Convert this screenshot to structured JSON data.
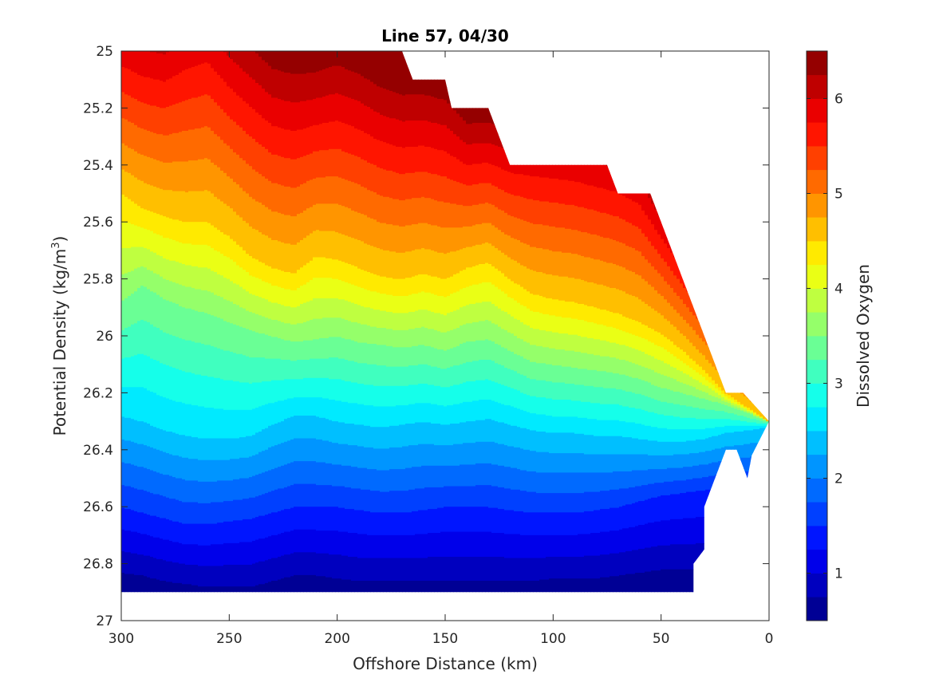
{
  "chart_data": {
    "type": "filled-contour",
    "title": "Line 57, 04/30",
    "xlabel": "Offshore Distance (km)",
    "ylabel_main": "Potential Density (kg/m",
    "ylabel_sup": "3",
    "ylabel_tail": ")",
    "colorbar_label": "Dissolved Oxygen",
    "xlim": [
      300,
      0
    ],
    "ylim": [
      25,
      27
    ],
    "x_reversed": true,
    "y_reversed": true,
    "xticks": [
      300,
      250,
      200,
      150,
      100,
      50,
      0
    ],
    "xtick_labels": [
      "300",
      "250",
      "200",
      "150",
      "100",
      "50",
      "0"
    ],
    "yticks": [
      25,
      25.2,
      25.4,
      25.6,
      25.8,
      26,
      26.2,
      26.4,
      26.6,
      26.8,
      27
    ],
    "ytick_labels": [
      "25",
      "25.2",
      "25.4",
      "25.6",
      "25.8",
      "26",
      "26.2",
      "26.4",
      "26.6",
      "26.8",
      "27"
    ],
    "colorbar_range": [
      0.5,
      6.5
    ],
    "colorbar_ticks": [
      1,
      2,
      3,
      4,
      5,
      6
    ],
    "colorbar_tick_labels": [
      "1",
      "2",
      "3",
      "4",
      "5",
      "6"
    ],
    "contour_levels": [
      0.5,
      0.75,
      1.0,
      1.25,
      1.5,
      1.75,
      2.0,
      2.25,
      2.5,
      2.75,
      3.0,
      3.25,
      3.5,
      3.75,
      4.0,
      4.25,
      4.5,
      4.75,
      5.0,
      5.25,
      5.5,
      5.75,
      6.0,
      6.25,
      6.5
    ],
    "colormap": "jet",
    "grid": false,
    "data_top_boundary": [
      [
        300,
        25.0
      ],
      [
        170,
        25.0
      ],
      [
        165,
        25.1
      ],
      [
        150,
        25.1
      ],
      [
        147,
        25.2
      ],
      [
        130,
        25.2
      ],
      [
        120,
        25.4
      ],
      [
        75,
        25.4
      ],
      [
        70,
        25.5
      ],
      [
        55,
        25.5
      ],
      [
        20,
        26.2
      ],
      [
        12,
        26.2
      ],
      [
        0,
        26.3
      ]
    ],
    "data_bottom_boundary": [
      [
        300,
        26.9
      ],
      [
        35,
        26.9
      ],
      [
        35,
        26.8
      ],
      [
        30,
        26.75
      ],
      [
        30,
        26.6
      ],
      [
        25,
        26.5
      ],
      [
        20,
        26.4
      ],
      [
        15,
        26.4
      ],
      [
        10,
        26.5
      ],
      [
        8,
        26.42
      ],
      [
        0,
        26.3
      ]
    ],
    "oxygen_at_density_300km": [
      [
        25.0,
        6.1
      ],
      [
        25.2,
        5.9
      ],
      [
        25.4,
        5.2
      ],
      [
        25.6,
        4.5
      ],
      [
        25.8,
        3.9
      ],
      [
        26.0,
        3.5
      ],
      [
        26.2,
        2.9
      ],
      [
        26.4,
        2.3
      ],
      [
        26.6,
        1.7
      ],
      [
        26.8,
        1.0
      ],
      [
        26.9,
        0.7
      ]
    ],
    "oxygen_contour_density_samples": {
      "x": [
        300,
        290,
        280,
        270,
        260,
        250,
        240,
        230,
        220,
        210,
        200,
        190,
        180,
        170,
        160,
        150,
        140,
        130,
        120,
        110,
        100,
        90,
        80,
        70,
        60,
        50,
        40,
        30,
        20,
        10,
        0
      ],
      "o2_5_5": [
        25.14,
        25.18,
        25.2,
        25.17,
        25.15,
        25.23,
        25.3,
        25.36,
        25.38,
        25.35,
        25.34,
        25.37,
        25.41,
        25.43,
        25.42,
        25.44,
        25.47,
        25.46,
        25.5,
        25.52,
        25.53,
        25.54,
        25.56,
        25.58,
        25.62,
        25.72,
        null,
        null,
        null,
        null,
        null
      ],
      "o2_4_5": [
        25.5,
        25.55,
        25.58,
        25.6,
        25.6,
        25.65,
        25.72,
        25.76,
        25.78,
        25.72,
        25.73,
        25.76,
        25.79,
        25.8,
        25.78,
        25.8,
        25.76,
        25.74,
        25.8,
        25.85,
        25.87,
        25.88,
        25.9,
        25.92,
        25.95,
        25.99,
        26.05,
        26.12,
        26.2,
        26.25,
        null
      ],
      "o2_3_5": [
        25.88,
        25.82,
        25.87,
        25.9,
        25.92,
        25.95,
        25.98,
        26.0,
        26.02,
        26.01,
        26.0,
        26.02,
        26.03,
        26.04,
        26.03,
        26.05,
        26.02,
        26.01,
        26.05,
        26.09,
        26.1,
        26.11,
        26.12,
        26.13,
        26.15,
        26.18,
        26.2,
        26.22,
        26.24,
        26.27,
        null
      ],
      "o2_2_5": [
        26.28,
        26.3,
        26.33,
        26.35,
        26.36,
        26.36,
        26.35,
        26.31,
        26.28,
        26.28,
        26.3,
        26.31,
        26.32,
        26.31,
        26.3,
        26.31,
        26.3,
        26.29,
        26.31,
        26.33,
        26.34,
        26.34,
        26.35,
        26.35,
        26.36,
        26.37,
        26.37,
        26.36,
        26.34,
        26.33,
        null
      ],
      "o2_1_5": [
        26.6,
        26.62,
        26.64,
        26.66,
        26.66,
        26.65,
        26.64,
        26.62,
        26.6,
        26.6,
        26.6,
        26.61,
        26.62,
        26.62,
        26.61,
        26.6,
        26.6,
        26.6,
        26.61,
        26.62,
        26.62,
        26.62,
        26.61,
        26.6,
        26.58,
        26.56,
        26.55,
        26.54,
        null,
        null,
        null
      ],
      "o2_0_75": [
        26.83,
        26.84,
        26.86,
        26.87,
        26.88,
        26.88,
        26.88,
        26.86,
        26.84,
        26.84,
        26.85,
        26.86,
        26.86,
        26.86,
        26.86,
        26.86,
        26.86,
        26.86,
        26.86,
        26.86,
        26.85,
        26.85,
        26.85,
        26.84,
        26.83,
        26.82,
        26.82,
        null,
        null,
        null,
        null
      ]
    }
  }
}
